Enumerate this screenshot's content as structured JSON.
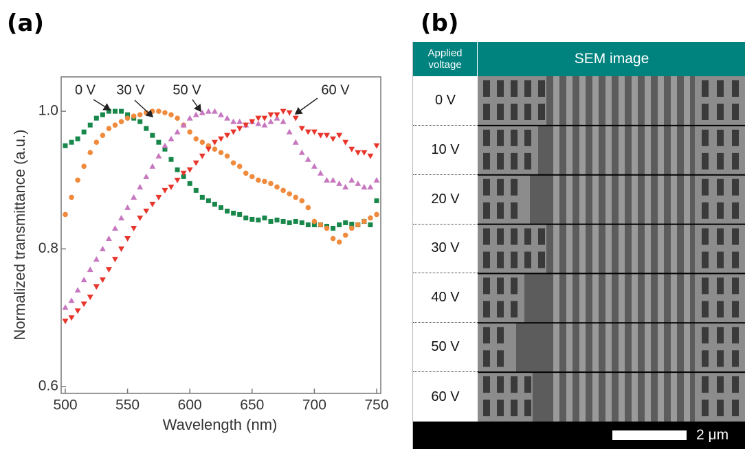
{
  "panel_labels": [
    "(a)",
    "(b)"
  ],
  "chart_data": {
    "type": "scatter",
    "x_label": "Wavelength (nm)",
    "y_label": "Normalized transmittance (a.u.)",
    "x": [
      500,
      505,
      510,
      515,
      520,
      525,
      530,
      535,
      540,
      545,
      550,
      555,
      560,
      565,
      570,
      575,
      580,
      585,
      590,
      595,
      600,
      605,
      610,
      615,
      620,
      625,
      630,
      635,
      640,
      645,
      650,
      655,
      660,
      665,
      670,
      675,
      680,
      685,
      690,
      695,
      700,
      705,
      710,
      715,
      720,
      725,
      730,
      735,
      740,
      745,
      750
    ],
    "series": [
      {
        "name": "0 V",
        "color": "#17874a",
        "marker": "square",
        "values": [
          0.95,
          0.955,
          0.96,
          0.97,
          0.98,
          0.99,
          0.995,
          1.0,
          1.0,
          1.0,
          0.995,
          0.99,
          0.985,
          0.975,
          0.965,
          0.955,
          0.945,
          0.93,
          0.915,
          0.905,
          0.895,
          0.885,
          0.875,
          0.87,
          0.865,
          0.86,
          0.855,
          0.852,
          0.85,
          0.845,
          0.843,
          0.842,
          0.845,
          0.84,
          0.842,
          0.84,
          0.838,
          0.84,
          0.838,
          0.835,
          0.835,
          0.835,
          0.833,
          0.83,
          0.835,
          0.838,
          0.836,
          0.835,
          0.84,
          0.835,
          0.87
        ]
      },
      {
        "name": "30 V",
        "color": "#f08a3c",
        "marker": "circle",
        "values": [
          0.85,
          0.875,
          0.9,
          0.92,
          0.94,
          0.955,
          0.965,
          0.975,
          0.98,
          0.985,
          0.99,
          0.993,
          0.995,
          0.998,
          1.0,
          1.0,
          0.998,
          0.995,
          0.99,
          0.98,
          0.97,
          0.96,
          0.955,
          0.95,
          0.945,
          0.94,
          0.935,
          0.925,
          0.92,
          0.91,
          0.905,
          0.9,
          0.898,
          0.895,
          0.89,
          0.885,
          0.88,
          0.875,
          0.87,
          0.86,
          0.84,
          0.835,
          0.83,
          0.815,
          0.81,
          0.82,
          0.83,
          0.835,
          0.84,
          0.845,
          0.85
        ]
      },
      {
        "name": "50 V",
        "color": "#c777bf",
        "marker": "triangle-up",
        "values": [
          0.715,
          0.725,
          0.74,
          0.755,
          0.77,
          0.785,
          0.8,
          0.815,
          0.83,
          0.845,
          0.86,
          0.875,
          0.89,
          0.905,
          0.92,
          0.935,
          0.95,
          0.96,
          0.97,
          0.98,
          0.99,
          0.995,
          0.998,
          1.0,
          1.0,
          0.995,
          0.99,
          0.985,
          0.985,
          0.98,
          0.985,
          0.982,
          0.98,
          0.985,
          0.99,
          0.985,
          0.97,
          0.955,
          0.94,
          0.93,
          0.92,
          0.91,
          0.9,
          0.9,
          0.895,
          0.89,
          0.9,
          0.895,
          0.89,
          0.89,
          0.9
        ]
      },
      {
        "name": "60 V",
        "color": "#e8352c",
        "marker": "triangle-down",
        "values": [
          0.695,
          0.7,
          0.71,
          0.72,
          0.73,
          0.745,
          0.755,
          0.77,
          0.785,
          0.8,
          0.815,
          0.83,
          0.845,
          0.855,
          0.865,
          0.875,
          0.885,
          0.89,
          0.9,
          0.91,
          0.915,
          0.925,
          0.935,
          0.945,
          0.955,
          0.96,
          0.965,
          0.97,
          0.975,
          0.98,
          0.985,
          0.99,
          0.99,
          0.995,
          0.995,
          1.0,
          0.998,
          0.99,
          0.975,
          0.97,
          0.97,
          0.965,
          0.965,
          0.96,
          0.965,
          0.955,
          0.945,
          0.94,
          0.94,
          0.935,
          0.95
        ]
      }
    ],
    "xlim": [
      500,
      750
    ],
    "ylim": [
      0.59,
      1.05
    ],
    "xticks": [
      500,
      550,
      600,
      650,
      700,
      750
    ],
    "yticks": [
      0.6,
      0.8,
      {
        "value": 1,
        "label": "1.0"
      }
    ]
  },
  "table": {
    "header": [
      "Applied voltage",
      "SEM image"
    ],
    "rows": [
      "0 V",
      "10 V",
      "20 V",
      "30 V",
      "40 V",
      "50 V",
      "60 V"
    ]
  },
  "scale_bar": "2 μm"
}
